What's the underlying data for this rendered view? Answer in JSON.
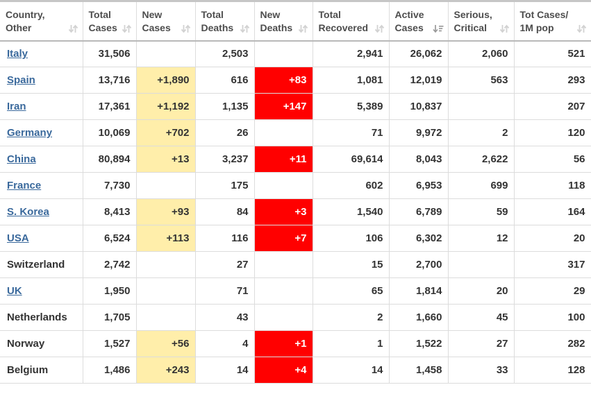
{
  "theme": {
    "link_color": "#3a699c",
    "highlight_yellow": "#ffeeaa",
    "highlight_red": "#ff0000",
    "body_text_color": "#333333",
    "header_text_color": "#4d4d4d",
    "border_color": "#dcdcdc",
    "sort_icon_idle_color": "#d2d2d2",
    "sort_icon_active_color": "#999999"
  },
  "table": {
    "columns": [
      {
        "id": "country",
        "label_line1": "Country,",
        "label_line2": "Other",
        "sort": "default",
        "align": "left"
      },
      {
        "id": "total_cases",
        "label_line1": "Total",
        "label_line2": "Cases",
        "sort": "default",
        "align": "right"
      },
      {
        "id": "new_cases",
        "label_line1": "New",
        "label_line2": "Cases",
        "sort": "default",
        "align": "right"
      },
      {
        "id": "total_deaths",
        "label_line1": "Total",
        "label_line2": "Deaths",
        "sort": "default",
        "align": "right"
      },
      {
        "id": "new_deaths",
        "label_line1": "New",
        "label_line2": "Deaths",
        "sort": "default",
        "align": "right"
      },
      {
        "id": "total_recovered",
        "label_line1": "Total",
        "label_line2": "Recovered",
        "sort": "default",
        "align": "right"
      },
      {
        "id": "active_cases",
        "label_line1": "Active",
        "label_line2": "Cases",
        "sort": "desc",
        "align": "right"
      },
      {
        "id": "serious_critical",
        "label_line1": "Serious,",
        "label_line2": "Critical",
        "sort": "default",
        "align": "right"
      },
      {
        "id": "cases_per_1m",
        "label_line1": "Tot Cases/",
        "label_line2": "1M pop",
        "sort": "default",
        "align": "right"
      }
    ],
    "rows": [
      {
        "country": "Italy",
        "is_link": true,
        "total_cases": "31,506",
        "new_cases": "",
        "total_deaths": "2,503",
        "new_deaths": "",
        "total_recovered": "2,941",
        "active_cases": "26,062",
        "serious_critical": "2,060",
        "cases_per_1m": "521"
      },
      {
        "country": "Spain",
        "is_link": true,
        "total_cases": "13,716",
        "new_cases": "+1,890",
        "total_deaths": "616",
        "new_deaths": "+83",
        "total_recovered": "1,081",
        "active_cases": "12,019",
        "serious_critical": "563",
        "cases_per_1m": "293"
      },
      {
        "country": "Iran",
        "is_link": true,
        "total_cases": "17,361",
        "new_cases": "+1,192",
        "total_deaths": "1,135",
        "new_deaths": "+147",
        "total_recovered": "5,389",
        "active_cases": "10,837",
        "serious_critical": "",
        "cases_per_1m": "207"
      },
      {
        "country": "Germany",
        "is_link": true,
        "total_cases": "10,069",
        "new_cases": "+702",
        "total_deaths": "26",
        "new_deaths": "",
        "total_recovered": "71",
        "active_cases": "9,972",
        "serious_critical": "2",
        "cases_per_1m": "120"
      },
      {
        "country": "China",
        "is_link": true,
        "total_cases": "80,894",
        "new_cases": "+13",
        "total_deaths": "3,237",
        "new_deaths": "+11",
        "total_recovered": "69,614",
        "active_cases": "8,043",
        "serious_critical": "2,622",
        "cases_per_1m": "56"
      },
      {
        "country": "France",
        "is_link": true,
        "total_cases": "7,730",
        "new_cases": "",
        "total_deaths": "175",
        "new_deaths": "",
        "total_recovered": "602",
        "active_cases": "6,953",
        "serious_critical": "699",
        "cases_per_1m": "118"
      },
      {
        "country": "S. Korea",
        "is_link": true,
        "total_cases": "8,413",
        "new_cases": "+93",
        "total_deaths": "84",
        "new_deaths": "+3",
        "total_recovered": "1,540",
        "active_cases": "6,789",
        "serious_critical": "59",
        "cases_per_1m": "164"
      },
      {
        "country": "USA",
        "is_link": true,
        "total_cases": "6,524",
        "new_cases": "+113",
        "total_deaths": "116",
        "new_deaths": "+7",
        "total_recovered": "106",
        "active_cases": "6,302",
        "serious_critical": "12",
        "cases_per_1m": "20"
      },
      {
        "country": "Switzerland",
        "is_link": false,
        "total_cases": "2,742",
        "new_cases": "",
        "total_deaths": "27",
        "new_deaths": "",
        "total_recovered": "15",
        "active_cases": "2,700",
        "serious_critical": "",
        "cases_per_1m": "317"
      },
      {
        "country": "UK",
        "is_link": true,
        "total_cases": "1,950",
        "new_cases": "",
        "total_deaths": "71",
        "new_deaths": "",
        "total_recovered": "65",
        "active_cases": "1,814",
        "serious_critical": "20",
        "cases_per_1m": "29"
      },
      {
        "country": "Netherlands",
        "is_link": false,
        "total_cases": "1,705",
        "new_cases": "",
        "total_deaths": "43",
        "new_deaths": "",
        "total_recovered": "2",
        "active_cases": "1,660",
        "serious_critical": "45",
        "cases_per_1m": "100"
      },
      {
        "country": "Norway",
        "is_link": false,
        "total_cases": "1,527",
        "new_cases": "+56",
        "total_deaths": "4",
        "new_deaths": "+1",
        "total_recovered": "1",
        "active_cases": "1,522",
        "serious_critical": "27",
        "cases_per_1m": "282"
      },
      {
        "country": "Belgium",
        "is_link": false,
        "total_cases": "1,486",
        "new_cases": "+243",
        "total_deaths": "14",
        "new_deaths": "+4",
        "total_recovered": "14",
        "active_cases": "1,458",
        "serious_critical": "33",
        "cases_per_1m": "128"
      }
    ]
  }
}
